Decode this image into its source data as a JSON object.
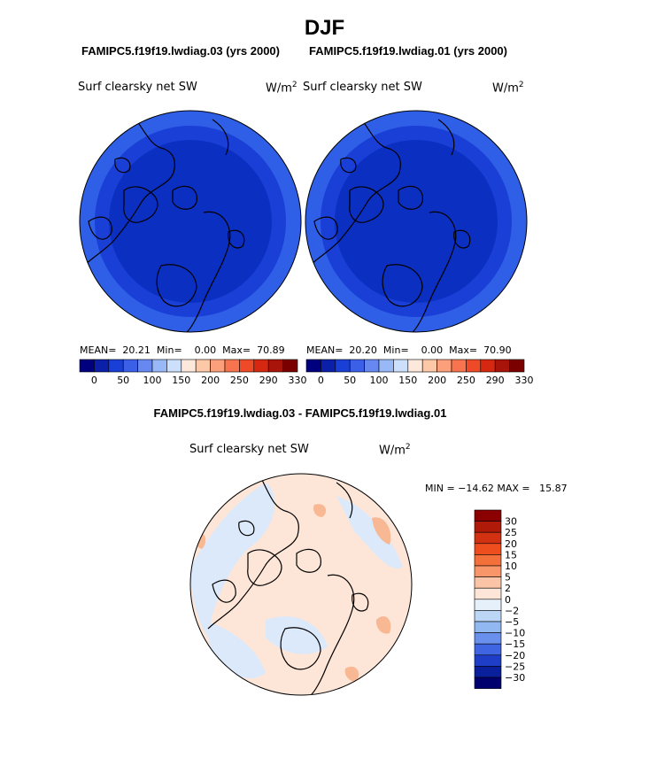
{
  "figure": {
    "season": "DJF",
    "left_case": "FAMIPC5.f19f19.lwdiag.03 (yrs 2000)",
    "right_case": "FAMIPC5.f19f19.lwdiag.01 (yrs 2000)",
    "diff_title": "FAMIPC5.f19f19.lwdiag.03 - FAMIPC5.f19f19.lwdiag.01"
  },
  "panels": {
    "left": {
      "variable": "Surf clearsky net SW",
      "unit": "W/m",
      "unit_exp": "2",
      "mean_label": "MEAN=",
      "mean": "20.21",
      "min_label": "Min=",
      "min": "0.00",
      "max_label": "Max=",
      "max": "70.89"
    },
    "right": {
      "variable": "Surf clearsky net SW",
      "unit": "W/m",
      "unit_exp": "2",
      "mean_label": "MEAN=",
      "mean": "20.20",
      "min_label": "Min=",
      "min": "0.00",
      "max_label": "Max=",
      "max": "70.90"
    },
    "diff": {
      "variable": "Surf clearsky net SW",
      "unit": "W/m",
      "unit_exp": "2",
      "minmax_text": "MIN = −14.62 MAX =   15.87"
    }
  },
  "colorbars": {
    "abs_labels": [
      "0",
      "50",
      "100",
      "150",
      "200",
      "250",
      "290",
      "330"
    ],
    "abs_colors": [
      "#00007f",
      "#0b1fa8",
      "#1a3fd6",
      "#3c5fe8",
      "#6688f0",
      "#99b8f7",
      "#ccdffc",
      "#fde8dc",
      "#fcc8a8",
      "#fba07a",
      "#f7744e",
      "#ee4a28",
      "#d42810",
      "#a8140a",
      "#7a0000"
    ],
    "diff_labels": [
      "30",
      "25",
      "20",
      "15",
      "10",
      "5",
      "2",
      "0",
      "−2",
      "−5",
      "−10",
      "−15",
      "−20",
      "−25",
      "−30"
    ],
    "diff_colors": [
      "#8b0000",
      "#b01a08",
      "#d23212",
      "#ee4d1e",
      "#f4703a",
      "#f8966a",
      "#fcc4a6",
      "#fde6d8",
      "#e6f0fb",
      "#bcd6f6",
      "#92b8f2",
      "#6890ec",
      "#3f65e2",
      "#1f3ec8",
      "#0a1f9c",
      "#00006e"
    ]
  },
  "maps": {
    "left": {
      "ocean_color": "#0b2fc0",
      "mid_color": "#1a3fd6",
      "rim_color": "#2f5fe6"
    },
    "right": {
      "ocean_color": "#0b2fc0",
      "mid_color": "#1a3fd6",
      "rim_color": "#2f5fe6"
    },
    "diff": {
      "base_color": "#fde6d8",
      "cool_color": "#dbe9fb",
      "warm_color": "#f8b894"
    }
  }
}
